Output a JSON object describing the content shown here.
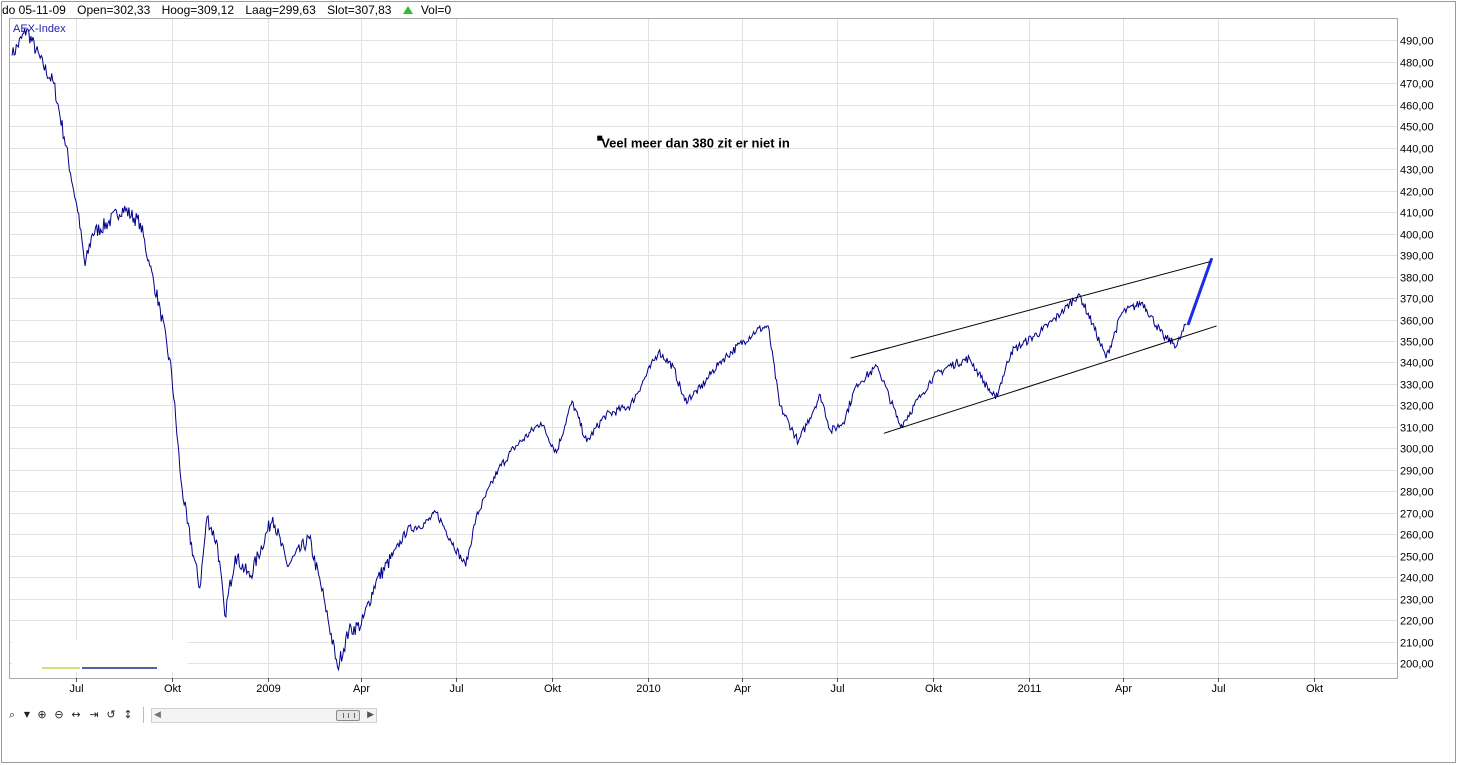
{
  "header": {
    "date": "do 05-11-09",
    "open": "Open=302,33",
    "high": "Hoog=309,12",
    "low": "Laag=299,63",
    "close": "Slot=307,83",
    "volume": "Vol=0"
  },
  "colors": {
    "series": "#00008b",
    "grid": "#e2e2e2",
    "trend": "#000000",
    "projection": "#1a2ee6",
    "up_arrow": "#33bb33"
  },
  "toolbar": {
    "icons": [
      "zoom-icon",
      "dropdown-arrow-icon",
      "zoom-in-icon",
      "zoom-out-icon",
      "fit-horizontal-icon",
      "fit-range-icon",
      "reset-zoom-icon",
      "fit-vertical-icon"
    ],
    "scroll_left": "◀",
    "scroll_right": "▶"
  },
  "chart_data": {
    "type": "line",
    "series": [
      {
        "name": "AEX-Index",
        "points": [
          [
            "2008-05-01",
            483
          ],
          [
            "2008-05-15",
            495
          ],
          [
            "2008-05-31",
            478
          ],
          [
            "2008-06-10",
            470
          ],
          [
            "2008-06-20",
            445
          ],
          [
            "2008-07-03",
            410
          ],
          [
            "2008-07-10",
            385
          ],
          [
            "2008-07-17",
            400
          ],
          [
            "2008-08-01",
            405
          ],
          [
            "2008-08-15",
            412
          ],
          [
            "2008-09-01",
            405
          ],
          [
            "2008-09-10",
            385
          ],
          [
            "2008-09-20",
            365
          ],
          [
            "2008-10-01",
            335
          ],
          [
            "2008-10-10",
            285
          ],
          [
            "2008-10-16",
            265
          ],
          [
            "2008-10-28",
            235
          ],
          [
            "2008-11-04",
            268
          ],
          [
            "2008-11-14",
            255
          ],
          [
            "2008-11-21",
            222
          ],
          [
            "2008-12-01",
            250
          ],
          [
            "2008-12-15",
            240
          ],
          [
            "2009-01-06",
            268
          ],
          [
            "2009-01-20",
            245
          ],
          [
            "2009-02-10",
            258
          ],
          [
            "2009-02-25",
            228
          ],
          [
            "2009-03-09",
            198
          ],
          [
            "2009-03-20",
            215
          ],
          [
            "2009-04-01",
            218
          ],
          [
            "2009-04-15",
            238
          ],
          [
            "2009-05-01",
            250
          ],
          [
            "2009-05-15",
            262
          ],
          [
            "2009-06-01",
            265
          ],
          [
            "2009-06-12",
            270
          ],
          [
            "2009-06-25",
            258
          ],
          [
            "2009-07-10",
            245
          ],
          [
            "2009-07-20",
            268
          ],
          [
            "2009-08-10",
            290
          ],
          [
            "2009-08-25",
            300
          ],
          [
            "2009-09-20",
            312
          ],
          [
            "2009-10-05",
            298
          ],
          [
            "2009-10-20",
            322
          ],
          [
            "2009-11-03",
            303
          ],
          [
            "2009-11-20",
            315
          ],
          [
            "2009-12-15",
            320
          ],
          [
            "2010-01-11",
            345
          ],
          [
            "2010-01-25",
            338
          ],
          [
            "2010-02-05",
            322
          ],
          [
            "2010-02-20",
            328
          ],
          [
            "2010-03-10",
            340
          ],
          [
            "2010-04-15",
            355
          ],
          [
            "2010-04-26",
            357
          ],
          [
            "2010-05-07",
            320
          ],
          [
            "2010-05-25",
            303
          ],
          [
            "2010-06-15",
            325
          ],
          [
            "2010-06-25",
            308
          ],
          [
            "2010-07-07",
            312
          ],
          [
            "2010-07-20",
            330
          ],
          [
            "2010-08-09",
            338
          ],
          [
            "2010-08-31",
            310
          ],
          [
            "2010-09-20",
            325
          ],
          [
            "2010-10-01",
            333
          ],
          [
            "2010-10-15",
            338
          ],
          [
            "2010-11-05",
            342
          ],
          [
            "2010-11-16",
            333
          ],
          [
            "2010-11-30",
            323
          ],
          [
            "2010-12-15",
            345
          ],
          [
            "2011-01-14",
            355
          ],
          [
            "2011-02-01",
            363
          ],
          [
            "2011-02-18",
            372
          ],
          [
            "2011-03-03",
            358
          ],
          [
            "2011-03-16",
            342
          ],
          [
            "2011-03-31",
            363
          ],
          [
            "2011-04-20",
            368
          ],
          [
            "2011-05-10",
            352
          ],
          [
            "2011-05-23",
            348
          ],
          [
            "2011-06-01",
            358
          ]
        ]
      },
      {
        "name": "",
        "style": "projection",
        "points": [
          [
            "2011-06-03",
            358
          ],
          [
            "2011-06-25",
            388
          ]
        ]
      }
    ],
    "trendlines": [
      {
        "from": [
          "2010-07-14",
          342
        ],
        "to": [
          "2011-06-24",
          387
        ]
      },
      {
        "from": [
          "2010-08-15",
          307
        ],
        "to": [
          "2011-06-30",
          357
        ]
      }
    ],
    "annotation": {
      "date": "2009-11-15",
      "value": 441,
      "text": "Veel meer dan 380 zit er niet in"
    },
    "title": "AEX-Index",
    "xlabel": "",
    "ylabel": "",
    "ylim": [
      193,
      500
    ],
    "yticks": [
      "200,00",
      "210,00",
      "220,00",
      "230,00",
      "240,00",
      "250,00",
      "260,00",
      "270,00",
      "280,00",
      "290,00",
      "300,00",
      "310,00",
      "320,00",
      "330,00",
      "340,00",
      "350,00",
      "360,00",
      "370,00",
      "380,00",
      "390,00",
      "400,00",
      "410,00",
      "420,00",
      "430,00",
      "440,00",
      "450,00",
      "460,00",
      "470,00",
      "480,00",
      "490,00"
    ],
    "ytick_values": [
      200,
      210,
      220,
      230,
      240,
      250,
      260,
      270,
      280,
      290,
      300,
      310,
      320,
      330,
      340,
      350,
      360,
      370,
      380,
      390,
      400,
      410,
      420,
      430,
      440,
      450,
      460,
      470,
      480,
      490
    ],
    "xticks": [
      {
        "date": "2008-07-01",
        "label": "Jul"
      },
      {
        "date": "2008-10-01",
        "label": "Okt"
      },
      {
        "date": "2009-01-01",
        "label": "2009"
      },
      {
        "date": "2009-04-01",
        "label": "Apr"
      },
      {
        "date": "2009-07-01",
        "label": "Jul"
      },
      {
        "date": "2009-10-01",
        "label": "Okt"
      },
      {
        "date": "2010-01-01",
        "label": "2010"
      },
      {
        "date": "2010-04-01",
        "label": "Apr"
      },
      {
        "date": "2010-07-01",
        "label": "Jul"
      },
      {
        "date": "2010-10-01",
        "label": "Okt"
      },
      {
        "date": "2011-01-01",
        "label": "2011"
      },
      {
        "date": "2011-04-01",
        "label": "Apr"
      },
      {
        "date": "2011-07-01",
        "label": "Jul"
      },
      {
        "date": "2011-10-01",
        "label": "Okt"
      }
    ],
    "xlim": [
      "2008-04-29",
      "2011-12-20"
    ],
    "grid": true,
    "legend": "top-left"
  }
}
